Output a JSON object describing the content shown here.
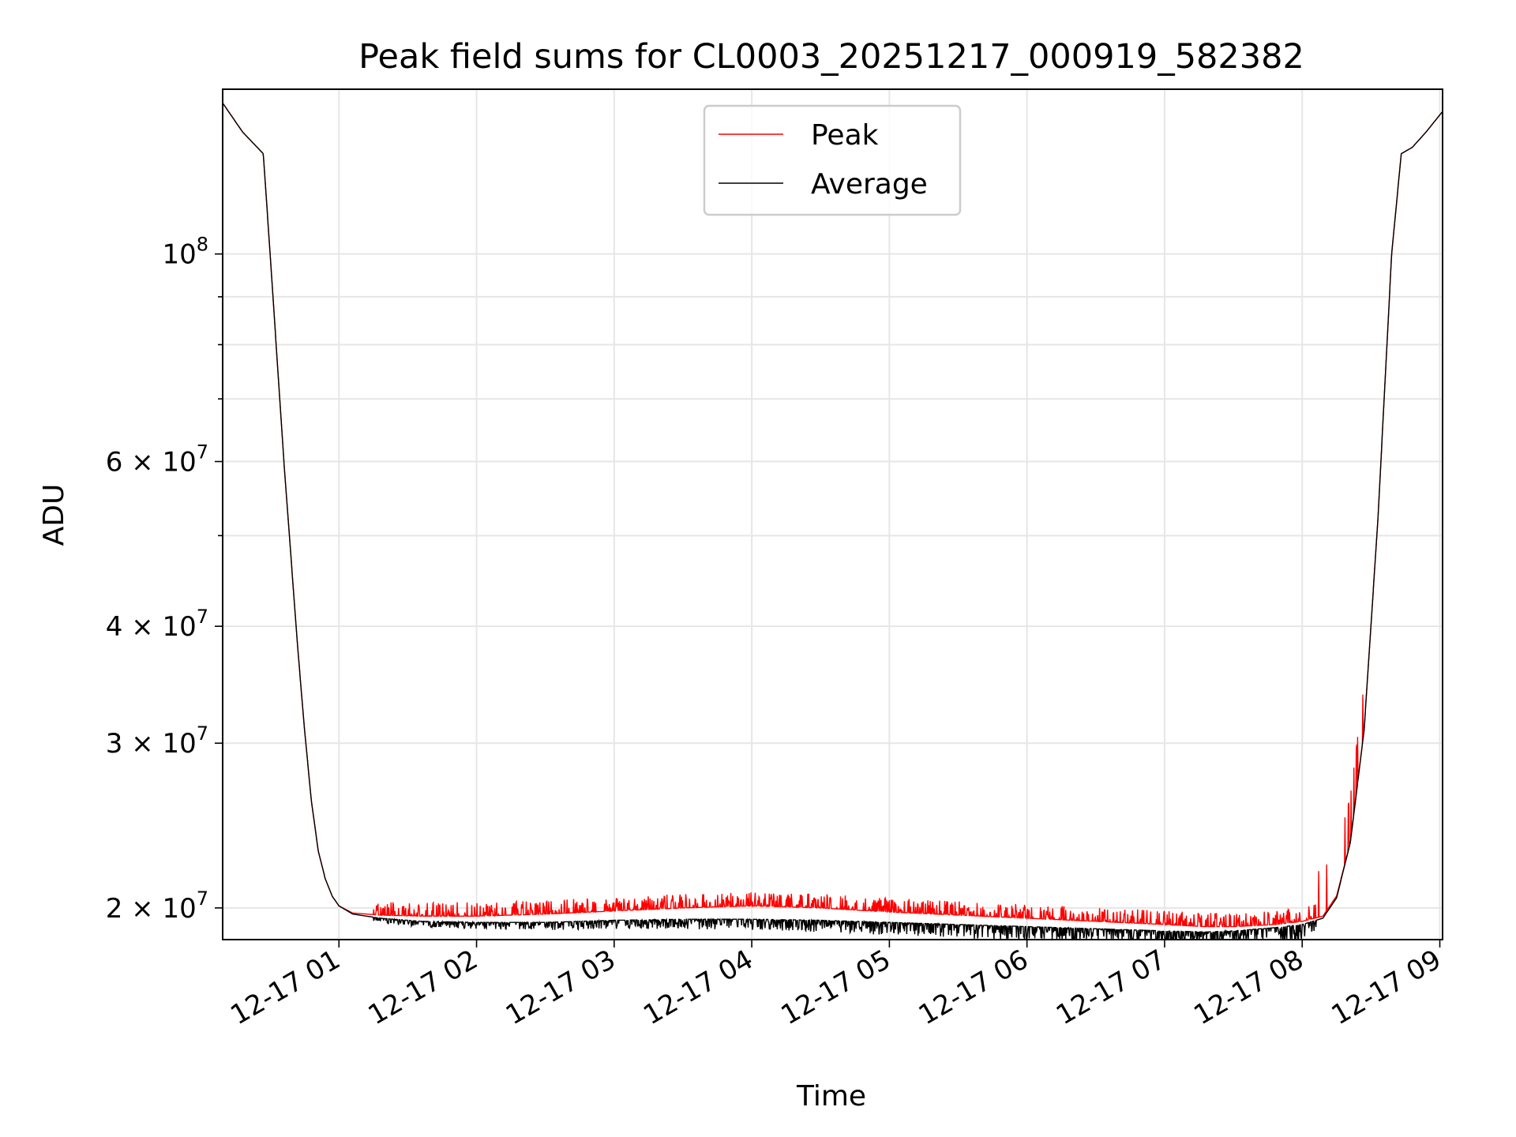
{
  "chart_data": {
    "type": "line",
    "title": "Peak field sums for CL0003_20251217_000919_582382",
    "xlabel": "Time",
    "ylabel": "ADU",
    "yscale": "log",
    "grid": true,
    "legend_position": "upper-center",
    "x_unit": "hours since 12-17 00:00",
    "xlim": [
      0.155,
      9.02
    ],
    "ylim": [
      18500000,
      150000000
    ],
    "x_ticks": [
      {
        "value": 1,
        "label": "12-17 01"
      },
      {
        "value": 2,
        "label": "12-17 02"
      },
      {
        "value": 3,
        "label": "12-17 03"
      },
      {
        "value": 4,
        "label": "12-17 04"
      },
      {
        "value": 5,
        "label": "12-17 05"
      },
      {
        "value": 6,
        "label": "12-17 06"
      },
      {
        "value": 7,
        "label": "12-17 07"
      },
      {
        "value": 8,
        "label": "12-17 08"
      },
      {
        "value": 9,
        "label": "12-17 09"
      }
    ],
    "y_ticks": [
      {
        "value": 20000000,
        "mantissa": "2",
        "base": "10",
        "exp": "7"
      },
      {
        "value": 30000000,
        "mantissa": "3",
        "base": "10",
        "exp": "7"
      },
      {
        "value": 40000000,
        "mantissa": "4",
        "base": "10",
        "exp": "7"
      },
      {
        "value": 60000000,
        "mantissa": "6",
        "base": "10",
        "exp": "7"
      },
      {
        "value": 100000000,
        "mantissa": "",
        "base": "10",
        "exp": "8"
      }
    ],
    "y_minor_ticks": [
      50000000,
      70000000,
      80000000,
      90000000
    ],
    "series": [
      {
        "name": "Peak",
        "color": "#ff0000",
        "x": [
          0.155,
          0.3,
          0.45,
          0.5,
          0.6,
          0.7,
          0.75,
          0.8,
          0.85,
          0.9,
          0.95,
          1.0,
          1.1,
          1.3,
          1.6,
          2.0,
          2.5,
          3.0,
          3.5,
          4.0,
          4.5,
          5.0,
          5.5,
          6.0,
          6.5,
          7.0,
          7.3,
          7.5,
          7.8,
          8.0,
          8.15,
          8.25,
          8.35,
          8.45,
          8.55,
          8.65,
          8.72,
          8.8,
          8.9,
          9.02
        ],
        "values": [
          145000000,
          135000000,
          128000000,
          100000000,
          60000000,
          38000000,
          31000000,
          26000000,
          23000000,
          21500000,
          20600000,
          20100000,
          19750000,
          19650000,
          19600000,
          19600000,
          19700000,
          19850000,
          20000000,
          20100000,
          20000000,
          19800000,
          19650000,
          19500000,
          19350000,
          19200000,
          19100000,
          19100000,
          19200000,
          19350000,
          19600000,
          20600000,
          23500000,
          31000000,
          52000000,
          100000000,
          128000000,
          130000000,
          135000000,
          142000000
        ]
      },
      {
        "name": "Average",
        "color": "#000000",
        "x": [
          0.155,
          0.3,
          0.45,
          0.5,
          0.6,
          0.7,
          0.75,
          0.8,
          0.85,
          0.9,
          0.95,
          1.0,
          1.1,
          1.3,
          1.6,
          2.0,
          2.5,
          3.0,
          3.5,
          4.0,
          4.5,
          5.0,
          5.5,
          6.0,
          6.5,
          7.0,
          7.3,
          7.5,
          7.8,
          8.0,
          8.15,
          8.25,
          8.35,
          8.45,
          8.55,
          8.65,
          8.72,
          8.8,
          8.9,
          9.02
        ],
        "values": [
          145000000,
          135000000,
          128000000,
          100000000,
          60000000,
          38000000,
          31000000,
          26000000,
          23000000,
          21500000,
          20600000,
          20100000,
          19700000,
          19500000,
          19350000,
          19300000,
          19300000,
          19400000,
          19450000,
          19450000,
          19400000,
          19300000,
          19200000,
          19100000,
          19000000,
          18900000,
          18850000,
          18900000,
          19050000,
          19200000,
          19500000,
          20500000,
          23500000,
          31000000,
          52000000,
          100000000,
          128000000,
          130000000,
          135000000,
          142000000
        ]
      }
    ]
  }
}
